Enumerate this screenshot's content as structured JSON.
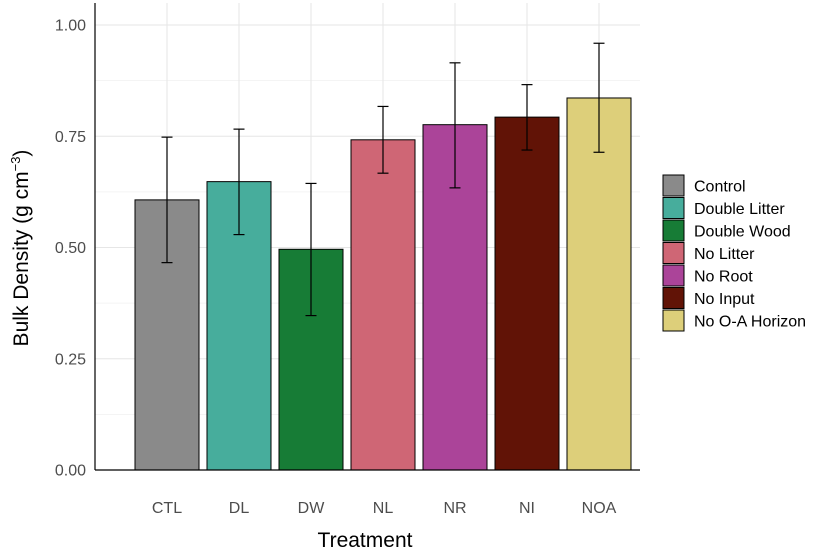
{
  "chart_data": {
    "type": "bar",
    "title": "",
    "xlabel": "Treatment",
    "ylabel": {
      "base": "Bulk Density (g cm",
      "superscript": "−3",
      "close": ")"
    },
    "ylim": [
      0,
      1.0
    ],
    "yticks": [
      0.0,
      0.25,
      0.5,
      0.75,
      1.0
    ],
    "ytick_labels": [
      "0.00",
      "0.25",
      "0.50",
      "0.75",
      "1.00"
    ],
    "grid": true,
    "legend_position": "right",
    "categories": [
      "CTL",
      "DL",
      "DW",
      "NL",
      "NR",
      "NI",
      "NOA"
    ],
    "legend": [
      "Control",
      "Double Litter",
      "Double Wood",
      "No Litter",
      "No Root",
      "No Input",
      "No O-A Horizon"
    ],
    "values": [
      0.607,
      0.648,
      0.496,
      0.742,
      0.776,
      0.793,
      0.836
    ],
    "error_low": [
      0.466,
      0.529,
      0.347,
      0.667,
      0.634,
      0.719,
      0.714
    ],
    "error_high": [
      0.748,
      0.766,
      0.644,
      0.817,
      0.915,
      0.866,
      0.959
    ],
    "colors": [
      "#8a8a8a",
      "#47ad9c",
      "#177c36",
      "#cf6675",
      "#ab4499",
      "#611306",
      "#ddcf7a"
    ]
  }
}
